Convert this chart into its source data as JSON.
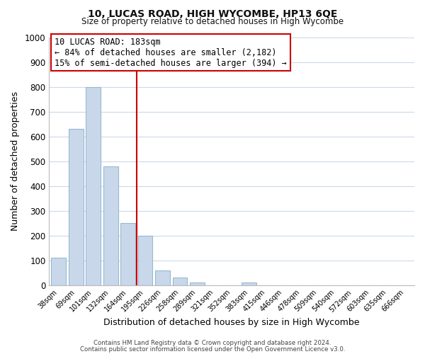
{
  "title": "10, LUCAS ROAD, HIGH WYCOMBE, HP13 6QE",
  "subtitle": "Size of property relative to detached houses in High Wycombe",
  "xlabel": "Distribution of detached houses by size in High Wycombe",
  "ylabel": "Number of detached properties",
  "bar_labels": [
    "38sqm",
    "69sqm",
    "101sqm",
    "132sqm",
    "164sqm",
    "195sqm",
    "226sqm",
    "258sqm",
    "289sqm",
    "321sqm",
    "352sqm",
    "383sqm",
    "415sqm",
    "446sqm",
    "478sqm",
    "509sqm",
    "540sqm",
    "572sqm",
    "603sqm",
    "635sqm",
    "666sqm"
  ],
  "bar_values": [
    110,
    630,
    800,
    480,
    250,
    200,
    60,
    30,
    10,
    0,
    0,
    10,
    0,
    0,
    0,
    0,
    0,
    0,
    0,
    0,
    0
  ],
  "bar_color": "#c8d8ea",
  "bar_edge_color": "#9ab8d0",
  "vline_x_idx": 4.5,
  "vline_color": "#cc0000",
  "ylim": [
    0,
    1000
  ],
  "yticks": [
    0,
    100,
    200,
    300,
    400,
    500,
    600,
    700,
    800,
    900,
    1000
  ],
  "annotation_title": "10 LUCAS ROAD: 183sqm",
  "annotation_line1": "← 84% of detached houses are smaller (2,182)",
  "annotation_line2": "15% of semi-detached houses are larger (394) →",
  "footer1": "Contains HM Land Registry data © Crown copyright and database right 2024.",
  "footer2": "Contains public sector information licensed under the Open Government Licence v3.0.",
  "background_color": "#ffffff",
  "grid_color": "#ccdae8"
}
